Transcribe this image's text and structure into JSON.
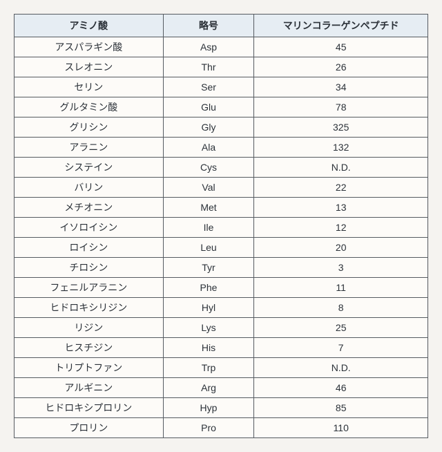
{
  "table": {
    "columns": [
      {
        "key": "name",
        "label": "アミノ酸",
        "class": "col-name"
      },
      {
        "key": "abbr",
        "label": "略号",
        "class": "col-abbr"
      },
      {
        "key": "value",
        "label": "マリンコラーゲンペプチド",
        "class": "col-val"
      }
    ],
    "rows": [
      {
        "name": "アスパラギン酸",
        "abbr": "Asp",
        "value": "45"
      },
      {
        "name": "スレオニン",
        "abbr": "Thr",
        "value": "26"
      },
      {
        "name": "セリン",
        "abbr": "Ser",
        "value": "34"
      },
      {
        "name": "グルタミン酸",
        "abbr": "Glu",
        "value": "78"
      },
      {
        "name": "グリシン",
        "abbr": "Gly",
        "value": "325"
      },
      {
        "name": "アラニン",
        "abbr": "Ala",
        "value": "132"
      },
      {
        "name": "システイン",
        "abbr": "Cys",
        "value": "N.D."
      },
      {
        "name": "バリン",
        "abbr": "Val",
        "value": "22"
      },
      {
        "name": "メチオニン",
        "abbr": "Met",
        "value": "13"
      },
      {
        "name": "イソロイシン",
        "abbr": "Ile",
        "value": "12"
      },
      {
        "name": "ロイシン",
        "abbr": "Leu",
        "value": "20"
      },
      {
        "name": "チロシン",
        "abbr": "Tyr",
        "value": "3"
      },
      {
        "name": "フェニルアラニン",
        "abbr": "Phe",
        "value": "11"
      },
      {
        "name": "ヒドロキシリジン",
        "abbr": "Hyl",
        "value": "8"
      },
      {
        "name": "リジン",
        "abbr": "Lys",
        "value": "25"
      },
      {
        "name": "ヒスチジン",
        "abbr": "His",
        "value": "7"
      },
      {
        "name": "トリプトファン",
        "abbr": "Trp",
        "value": "N.D."
      },
      {
        "name": "アルギニン",
        "abbr": "Arg",
        "value": "46"
      },
      {
        "name": "ヒドロキシプロリン",
        "abbr": "Hyp",
        "value": "85"
      },
      {
        "name": "プロリン",
        "abbr": "Pro",
        "value": "110"
      }
    ],
    "header_bg": "#e6edf3",
    "border_color": "#555a60",
    "body_bg": "#fdfbf8",
    "font_size": 14
  }
}
